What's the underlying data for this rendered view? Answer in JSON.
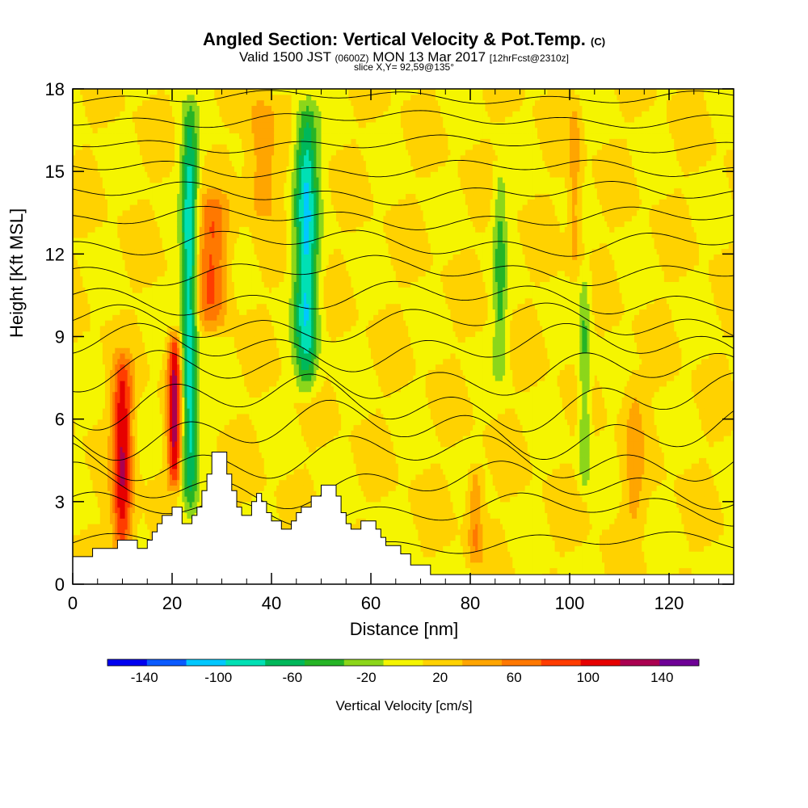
{
  "chart_data": {
    "type": "heatmap",
    "title": "Angled Section: Vertical Velocity & Pot.Temp.",
    "title_suffix": "(C)",
    "subtitle_valid": "Valid 1500 JST",
    "subtitle_utc": "(0600Z)",
    "subtitle_date": "MON 13 Mar 2017",
    "subtitle_fcst": "[12hrFcst@2310z]",
    "slice_label": "slice X,Y= 92,59@135°",
    "xlabel": "Distance [nm]",
    "ylabel": "Height [Kft MSL]",
    "xlim": [
      0,
      133
    ],
    "ylim": [
      0,
      18
    ],
    "x_ticks": [
      "0",
      "20",
      "40",
      "60",
      "80",
      "100",
      "120"
    ],
    "x_tick_values": [
      0,
      20,
      40,
      60,
      80,
      100,
      120
    ],
    "y_ticks": [
      "0",
      "3",
      "6",
      "9",
      "12",
      "15",
      "18"
    ],
    "y_tick_values": [
      0,
      3,
      6,
      9,
      12,
      15,
      18
    ],
    "colorbar": {
      "label": "Vertical Velocity [cm/s]",
      "tick_labels": [
        "-140",
        "-100",
        "-60",
        "-20",
        "20",
        "60",
        "100",
        "140"
      ],
      "tick_values": [
        -140,
        -100,
        -60,
        -20,
        20,
        60,
        100,
        140
      ],
      "min": -160,
      "max": 160,
      "colors": [
        "#0000f0",
        "#0a5aff",
        "#00c8ff",
        "#00e0b4",
        "#00b85a",
        "#26b426",
        "#8cd61a",
        "#f5f500",
        "#ffd200",
        "#ffa500",
        "#ff7800",
        "#ff3c00",
        "#e60000",
        "#aa0050",
        "#6e0096"
      ]
    },
    "background_value": 10,
    "features": [
      {
        "type": "updraft",
        "x": 10,
        "z_bottom": 0.5,
        "z_top": 8.7,
        "width": 2.0,
        "peak": 115
      },
      {
        "type": "updraft",
        "x": 20.5,
        "z_bottom": 3.2,
        "z_top": 9.5,
        "width": 1.4,
        "peak": 125
      },
      {
        "type": "updraft",
        "x": 28,
        "z_bottom": 9,
        "z_top": 14.5,
        "width": 3.2,
        "peak": 75
      },
      {
        "type": "updraft",
        "x": 38,
        "z_bottom": 13,
        "z_top": 18,
        "width": 3.0,
        "peak": 50
      },
      {
        "type": "updraft",
        "x": 81,
        "z_bottom": 0.5,
        "z_top": 4.5,
        "width": 1.5,
        "peak": 55
      },
      {
        "type": "updraft",
        "x": 101,
        "z_bottom": 11,
        "z_top": 18,
        "width": 1.3,
        "peak": 45
      },
      {
        "type": "updraft",
        "x": 113,
        "z_bottom": 1.5,
        "z_top": 8,
        "width": 2.0,
        "peak": 40
      },
      {
        "type": "downdraft",
        "x": 47,
        "z_bottom": 6.5,
        "z_top": 18,
        "width": 2.3,
        "peak": -95
      },
      {
        "type": "downdraft",
        "x": 23.5,
        "z_bottom": 2,
        "z_top": 18,
        "width": 1.6,
        "peak": -95
      },
      {
        "type": "downdraft",
        "x": 86,
        "z_bottom": 7,
        "z_top": 15.5,
        "width": 1.4,
        "peak": -35
      },
      {
        "type": "downdraft",
        "x": 103,
        "z_bottom": 3,
        "z_top": 12,
        "width": 1.2,
        "peak": -35
      }
    ],
    "terrain": [
      [
        0,
        1.0
      ],
      [
        4,
        1.0
      ],
      [
        4,
        1.3
      ],
      [
        9,
        1.3
      ],
      [
        9,
        1.6
      ],
      [
        13,
        1.6
      ],
      [
        13,
        1.3
      ],
      [
        15,
        1.3
      ],
      [
        15,
        1.6
      ],
      [
        16,
        1.6
      ],
      [
        16,
        1.9
      ],
      [
        17,
        1.9
      ],
      [
        17,
        2.2
      ],
      [
        18,
        2.2
      ],
      [
        18,
        2.5
      ],
      [
        20,
        2.5
      ],
      [
        20,
        2.8
      ],
      [
        22,
        2.8
      ],
      [
        22,
        2.2
      ],
      [
        24,
        2.2
      ],
      [
        24,
        2.5
      ],
      [
        25,
        2.5
      ],
      [
        25,
        2.8
      ],
      [
        26,
        2.8
      ],
      [
        26,
        3.4
      ],
      [
        27,
        3.4
      ],
      [
        27,
        4.0
      ],
      [
        28,
        4.0
      ],
      [
        28,
        4.8
      ],
      [
        31,
        4.8
      ],
      [
        31,
        4.0
      ],
      [
        32,
        4.0
      ],
      [
        32,
        3.4
      ],
      [
        33,
        3.4
      ],
      [
        33,
        2.8
      ],
      [
        34,
        2.8
      ],
      [
        34,
        2.5
      ],
      [
        36,
        2.5
      ],
      [
        36,
        3.0
      ],
      [
        37,
        3.0
      ],
      [
        37,
        3.3
      ],
      [
        38,
        3.3
      ],
      [
        38,
        3.0
      ],
      [
        39,
        3.0
      ],
      [
        39,
        2.6
      ],
      [
        40,
        2.6
      ],
      [
        40,
        2.3
      ],
      [
        42,
        2.3
      ],
      [
        42,
        2.0
      ],
      [
        44,
        2.0
      ],
      [
        44,
        2.3
      ],
      [
        45,
        2.3
      ],
      [
        45,
        2.6
      ],
      [
        46,
        2.6
      ],
      [
        46,
        2.8
      ],
      [
        48,
        2.8
      ],
      [
        48,
        3.2
      ],
      [
        50,
        3.2
      ],
      [
        50,
        3.6
      ],
      [
        53,
        3.6
      ],
      [
        53,
        3.2
      ],
      [
        54,
        3.2
      ],
      [
        54,
        2.6
      ],
      [
        55,
        2.6
      ],
      [
        55,
        2.2
      ],
      [
        56,
        2.2
      ],
      [
        56,
        2.0
      ],
      [
        58,
        2.0
      ],
      [
        58,
        2.3
      ],
      [
        61,
        2.3
      ],
      [
        61,
        2.0
      ],
      [
        62,
        2.0
      ],
      [
        62,
        1.7
      ],
      [
        63,
        1.7
      ],
      [
        63,
        1.4
      ],
      [
        66,
        1.4
      ],
      [
        66,
        1.1
      ],
      [
        68,
        1.1
      ],
      [
        68,
        0.7
      ],
      [
        72,
        0.7
      ],
      [
        72,
        0.35
      ],
      [
        133,
        0.35
      ]
    ],
    "theta_contours": [
      {
        "z0": 1.5,
        "amp": 0.4
      },
      {
        "z0": 2.7,
        "amp": 0.6
      },
      {
        "z0": 3.6,
        "amp": 0.8
      },
      {
        "z0": 4.6,
        "amp": 0.9
      },
      {
        "z0": 5.6,
        "amp": 1.0
      },
      {
        "z0": 6.6,
        "amp": 1.0
      },
      {
        "z0": 7.6,
        "amp": 0.9
      },
      {
        "z0": 8.6,
        "amp": 0.8
      },
      {
        "z0": 9.5,
        "amp": 0.7
      },
      {
        "z0": 10.4,
        "amp": 0.6
      },
      {
        "z0": 11.4,
        "amp": 0.5
      },
      {
        "z0": 12.4,
        "amp": 0.5
      },
      {
        "z0": 13.3,
        "amp": 0.4
      },
      {
        "z0": 14.2,
        "amp": 0.4
      },
      {
        "z0": 15.1,
        "amp": 0.35
      },
      {
        "z0": 16.0,
        "amp": 0.3
      },
      {
        "z0": 16.9,
        "amp": 0.3
      },
      {
        "z0": 17.7,
        "amp": 0.25
      }
    ]
  }
}
